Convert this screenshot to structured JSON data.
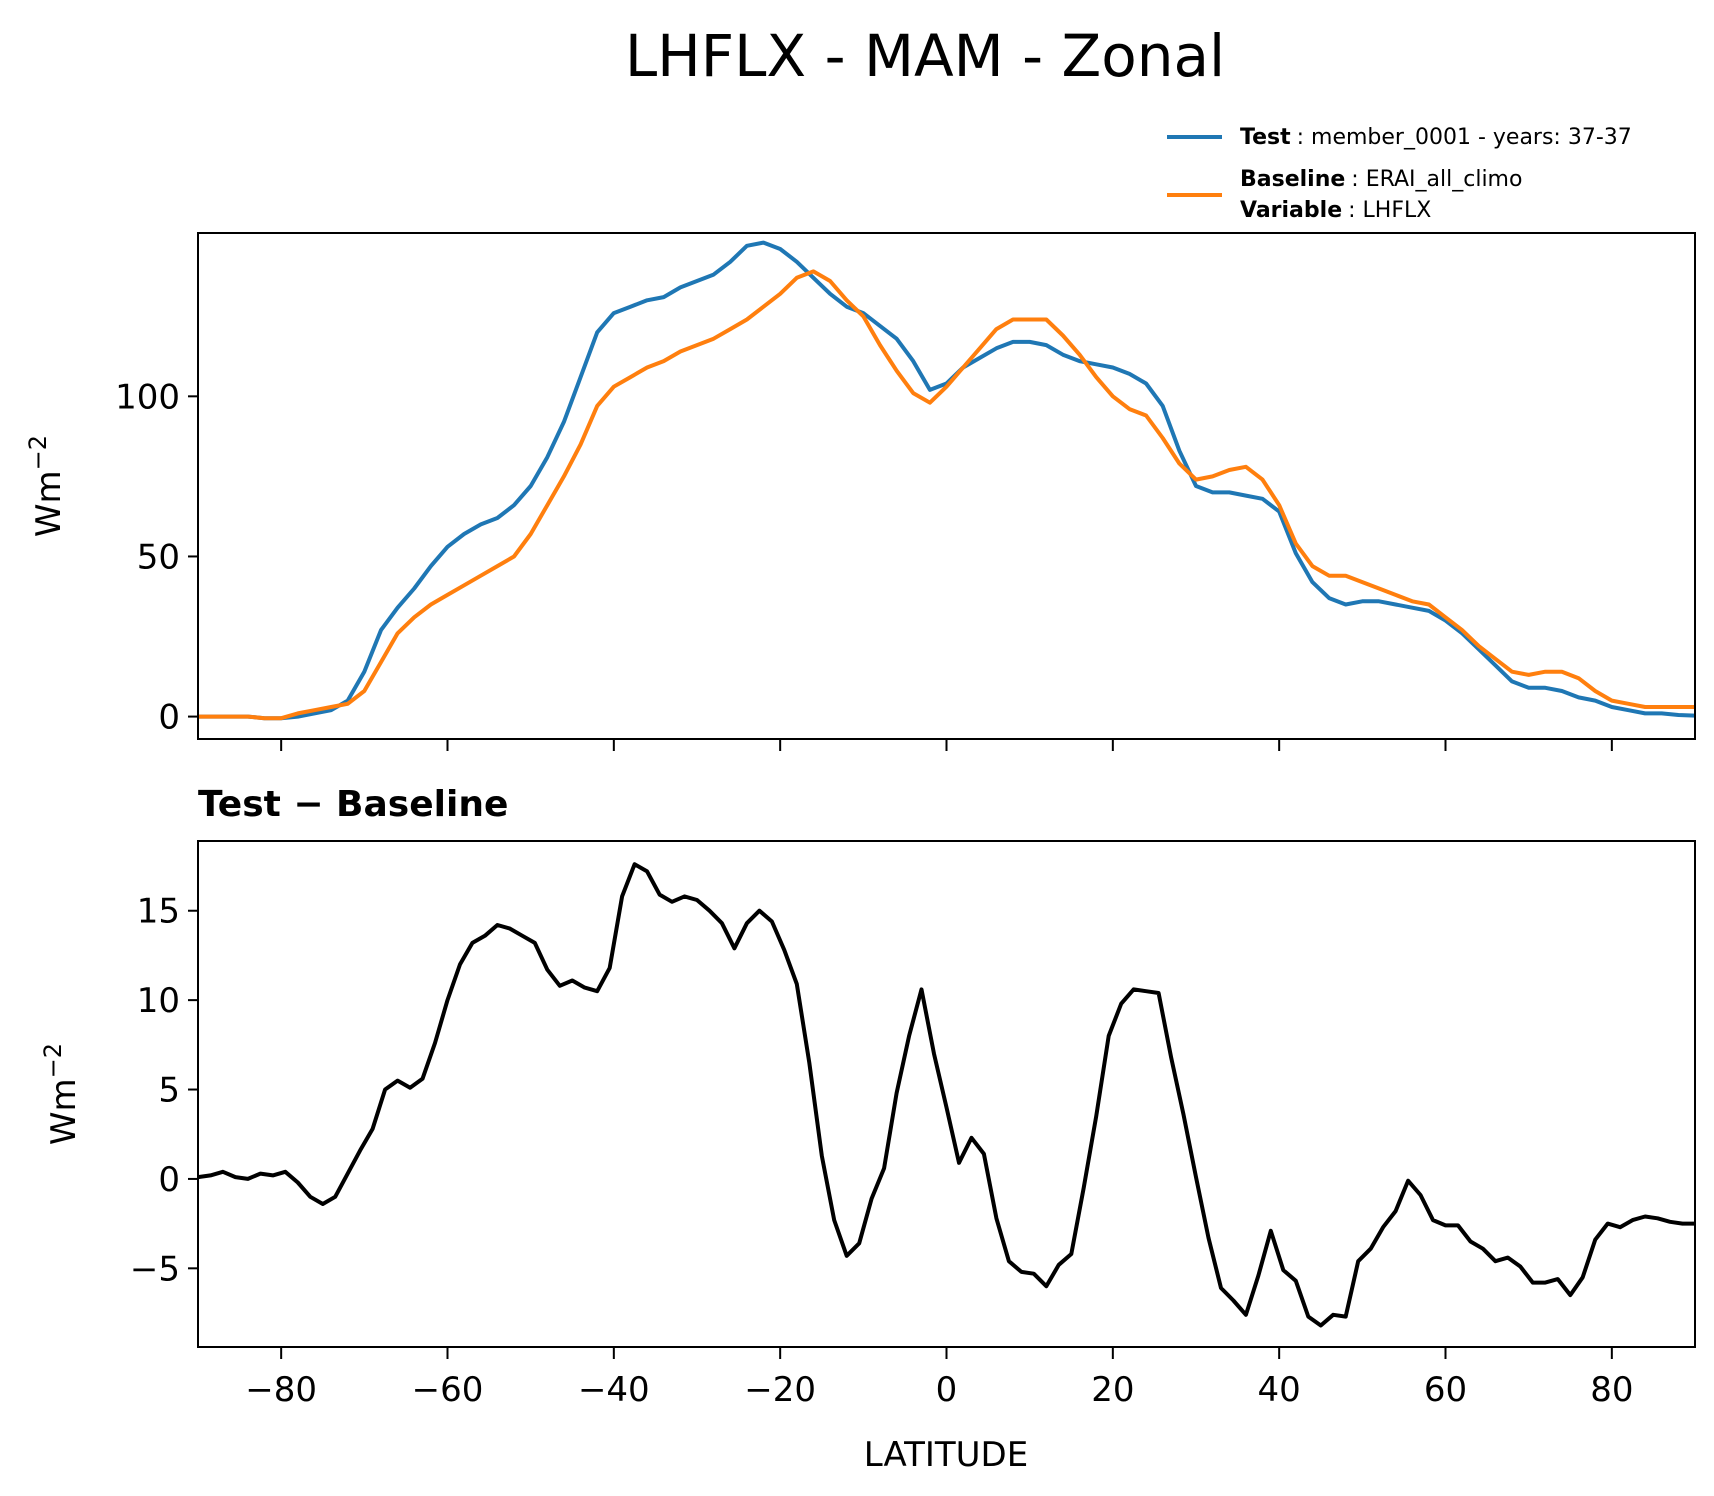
{
  "chart_data": [
    {
      "type": "line",
      "title": "LHFLX - MAM - Zonal",
      "xlabel": "",
      "ylabel": "Wm",
      "ylabel_exponent": "−2",
      "xlim": [
        -90,
        90
      ],
      "ylim": [
        -7,
        151
      ],
      "yticks": [
        0,
        50,
        100
      ],
      "ytick_labels": [
        "0",
        "50",
        "100"
      ],
      "grid": false,
      "legend": {
        "position": "top-right",
        "entries": [
          {
            "series": "Test",
            "label": "Test",
            "text": ": member_0001 - years: 37-37"
          },
          {
            "series": "Baseline",
            "label": "Baseline",
            "text": ": ERAI_all_climo",
            "label2": "Variable",
            "text2": ": LHFLX"
          }
        ]
      },
      "x": [
        -90,
        -88,
        -86,
        -84,
        -82,
        -80,
        -78,
        -76,
        -74,
        -72,
        -70,
        -68,
        -66,
        -64,
        -62,
        -60,
        -58,
        -56,
        -54,
        -52,
        -50,
        -48,
        -46,
        -44,
        -42,
        -40,
        -38,
        -36,
        -34,
        -32,
        -30,
        -28,
        -26,
        -24,
        -22,
        -20,
        -18,
        -16,
        -14,
        -12,
        -10,
        -8,
        -6,
        -4,
        -2,
        0,
        2,
        4,
        6,
        8,
        10,
        12,
        14,
        16,
        18,
        20,
        22,
        24,
        26,
        28,
        30,
        32,
        34,
        36,
        38,
        40,
        42,
        44,
        46,
        48,
        50,
        52,
        54,
        56,
        58,
        60,
        62,
        64,
        66,
        68,
        70,
        72,
        74,
        76,
        78,
        80,
        82,
        84,
        86,
        88,
        90
      ],
      "series": [
        {
          "name": "Test",
          "color": "#1f77b4",
          "values": [
            0,
            0,
            0,
            0,
            -0.5,
            -0.5,
            0,
            1,
            2,
            5,
            14,
            27,
            34,
            40,
            47,
            53,
            57,
            60,
            62,
            66,
            72,
            81,
            92,
            106,
            120,
            126,
            128,
            130,
            131,
            134,
            136,
            138,
            142,
            147,
            148,
            146,
            142,
            137,
            132,
            128,
            126,
            122,
            118,
            111,
            102,
            104,
            109,
            112,
            115,
            117,
            117,
            116,
            113,
            111,
            110,
            109,
            107,
            104,
            97,
            83,
            72,
            70,
            70,
            69,
            68,
            64,
            51,
            42,
            37,
            35,
            36,
            36,
            35,
            34,
            33,
            30,
            26,
            21,
            16,
            11,
            9,
            9,
            8,
            6,
            5,
            3,
            2,
            1,
            1,
            0.5,
            0.3
          ]
        },
        {
          "name": "Baseline",
          "color": "#ff7f0e",
          "values": [
            0,
            0,
            0,
            0,
            -0.5,
            -0.5,
            1,
            2,
            3,
            4,
            8,
            17,
            26,
            31,
            35,
            38,
            41,
            44,
            47,
            50,
            57,
            66,
            75,
            85,
            97,
            103,
            106,
            109,
            111,
            114,
            116,
            118,
            121,
            124,
            128,
            132,
            137,
            139,
            136,
            130,
            125,
            116,
            108,
            101,
            98,
            103,
            109,
            115,
            121,
            124,
            124,
            124,
            119,
            113,
            106,
            100,
            96,
            94,
            87,
            79,
            74,
            75,
            77,
            78,
            74,
            66,
            54,
            47,
            44,
            44,
            42,
            40,
            38,
            36,
            35,
            31,
            27,
            22,
            18,
            14,
            13,
            14,
            14,
            12,
            8,
            5,
            4,
            3,
            3,
            3,
            3
          ]
        }
      ]
    },
    {
      "type": "line",
      "title": "Test − Baseline",
      "xlabel": "LATITUDE",
      "ylabel": "Wm",
      "ylabel_exponent": "−2",
      "xlim": [
        -90,
        90
      ],
      "ylim": [
        -9.4,
        18.9
      ],
      "xticks": [
        -80,
        -60,
        -40,
        -20,
        0,
        20,
        40,
        60,
        80
      ],
      "xtick_labels": [
        "−80",
        "−60",
        "−40",
        "−20",
        "0",
        "20",
        "40",
        "60",
        "80"
      ],
      "yticks": [
        -5,
        0,
        5,
        10,
        15
      ],
      "ytick_labels": [
        "−5",
        "0",
        "5",
        "10",
        "15"
      ],
      "grid": false,
      "x": [
        -90,
        -88.5,
        -87,
        -85.5,
        -84,
        -82.5,
        -81,
        -79.5,
        -78,
        -76.5,
        -75,
        -73.5,
        -72,
        -70.5,
        -69,
        -67.5,
        -66,
        -64.5,
        -63,
        -61.5,
        -60,
        -58.5,
        -57,
        -55.5,
        -54,
        -52.5,
        -51,
        -49.5,
        -48,
        -46.5,
        -45,
        -43.5,
        -42,
        -40.5,
        -39,
        -37.5,
        -36,
        -34.5,
        -33,
        -31.5,
        -30,
        -28.5,
        -27,
        -25.5,
        -24,
        -22.5,
        -21,
        -19.5,
        -18,
        -16.5,
        -15,
        -13.5,
        -12,
        -10.5,
        -9,
        -7.5,
        -6,
        -4.5,
        -3,
        -1.5,
        0,
        1.5,
        3,
        4.5,
        6,
        7.5,
        9,
        10.5,
        12,
        13.5,
        15,
        16.5,
        18,
        19.5,
        21,
        22.5,
        24,
        25.5,
        27,
        28.5,
        30,
        31.5,
        33,
        34.5,
        36,
        37.5,
        39,
        40.5,
        42,
        43.5,
        45,
        46.5,
        48,
        49.5,
        51,
        52.5,
        54,
        55.5,
        57,
        58.5,
        60,
        61.5,
        63,
        64.5,
        66,
        67.5,
        69,
        70.5,
        72,
        73.5,
        75,
        76.5,
        78,
        79.5,
        81,
        82.5,
        84,
        85.5,
        87,
        88.5,
        90
      ],
      "series": [
        {
          "name": "Test − Baseline",
          "color": "#000000",
          "values": [
            0.1,
            0.2,
            0.4,
            0.1,
            0.0,
            0.3,
            0.2,
            0.4,
            -0.2,
            -1.0,
            -1.4,
            -1.0,
            0.3,
            1.6,
            2.8,
            5.0,
            5.5,
            5.1,
            5.6,
            7.6,
            10.0,
            12.0,
            13.2,
            13.6,
            14.2,
            14.0,
            13.6,
            13.2,
            11.7,
            10.8,
            11.1,
            10.7,
            10.5,
            11.8,
            15.8,
            17.6,
            17.2,
            15.9,
            15.5,
            15.8,
            15.6,
            15.0,
            14.3,
            12.9,
            14.3,
            15.0,
            14.4,
            12.8,
            10.9,
            6.5,
            1.3,
            -2.3,
            -4.3,
            -3.6,
            -1.1,
            0.6,
            4.8,
            8.0,
            10.6,
            7.0,
            4.0,
            0.9,
            2.3,
            1.4,
            -2.2,
            -4.6,
            -5.2,
            -5.3,
            -6.0,
            -4.8,
            -4.2,
            -0.5,
            3.5,
            8.0,
            9.8,
            10.6,
            10.5,
            10.4,
            6.8,
            3.6,
            0.1,
            -3.3,
            -6.1,
            -6.8,
            -7.6,
            -5.4,
            -2.9,
            -5.1,
            -5.7,
            -7.7,
            -8.2,
            -7.6,
            -7.7,
            -4.6,
            -3.9,
            -2.7,
            -1.8,
            -0.1,
            -0.9,
            -2.3,
            -2.6,
            -2.6,
            -3.5,
            -3.9,
            -4.6,
            -4.4,
            -4.9,
            -5.8,
            -5.8,
            -5.6,
            -6.5,
            -5.5,
            -3.4,
            -2.5,
            -2.7,
            -2.3,
            -2.1,
            -2.2,
            -2.4,
            -2.5,
            -2.5
          ]
        }
      ]
    }
  ]
}
